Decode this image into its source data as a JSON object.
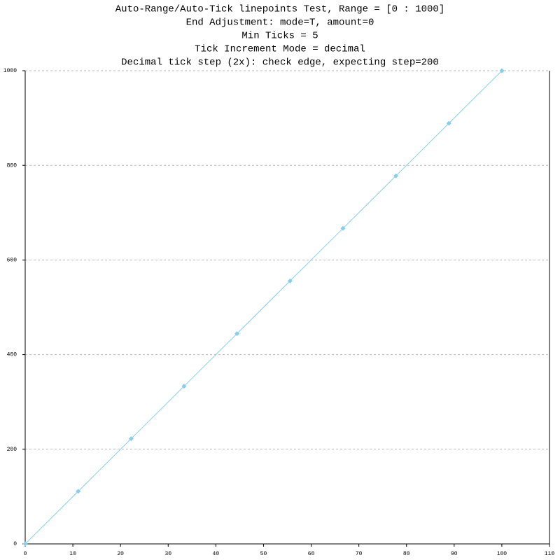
{
  "chart_data": {
    "type": "line",
    "title": [
      "Auto-Range/Auto-Tick linepoints Test, Range = [0 : 1000]",
      "End Adjustment: mode=T, amount=0",
      "Min Ticks = 5",
      "Tick Increment Mode = decimal",
      "Decimal tick step (2x): check edge, expecting step=200"
    ],
    "x": [
      0,
      11.11,
      22.22,
      33.33,
      44.44,
      55.56,
      66.67,
      77.78,
      88.89,
      100
    ],
    "series": [
      {
        "color": "#87ceeb",
        "values": [
          0,
          111.1,
          222.2,
          333.3,
          444.4,
          555.6,
          666.7,
          777.8,
          888.9,
          1000
        ]
      }
    ],
    "xlim": [
      0,
      110
    ],
    "xticks": [
      0,
      10,
      20,
      30,
      40,
      50,
      60,
      70,
      80,
      90,
      100,
      110
    ],
    "ylim": [
      0,
      1000
    ],
    "yticks": [
      0,
      200,
      400,
      600,
      800,
      1000
    ],
    "grid": true
  }
}
